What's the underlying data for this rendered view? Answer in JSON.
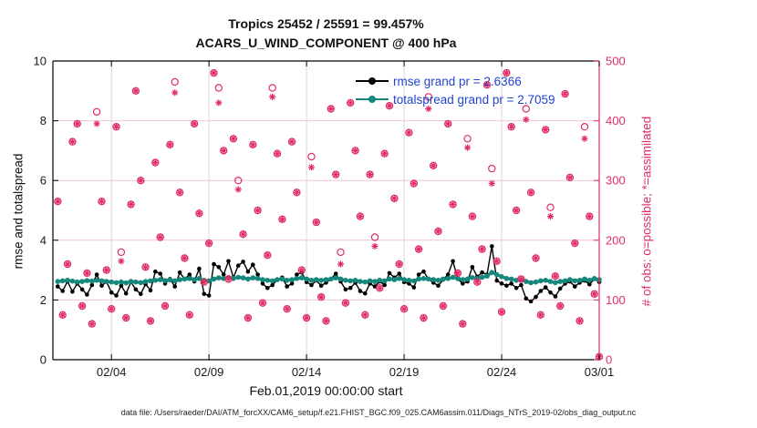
{
  "figure": {
    "title_line1": "Tropics 25452 / 25591 = 99.457%",
    "title_line2": "ACARS_U_WIND_COMPONENT @ 400 hPa",
    "caption": "data file: /Users/raeder/DAI/ATM_forcXX/CAM6_setup/f.e21.FHIST_BGC.f09_025.CAM6assim.011/Diags_NTrS_2019-02/obs_diag_output.nc"
  },
  "chart_data": {
    "type": "line",
    "title": "Tropics 25452 / 25591 = 99.457%",
    "subtitle": "ACARS_U_WIND_COMPONENT @ 400 hPa",
    "xlabel": "Feb.01,2019 00:00:00 start",
    "ylabel_left": "rmse and totalspread",
    "ylabel_right": "# of obs: o=possible; *=assimilated",
    "x_start_day": 0,
    "x_end_day": 28,
    "xticks": [
      {
        "day": 3,
        "label": "02/04"
      },
      {
        "day": 8,
        "label": "02/09"
      },
      {
        "day": 13,
        "label": "02/14"
      },
      {
        "day": 18,
        "label": "02/19"
      },
      {
        "day": 23,
        "label": "02/24"
      },
      {
        "day": 28,
        "label": "03/01"
      }
    ],
    "ylim_left": [
      0,
      10
    ],
    "yticks_left": [
      0,
      2,
      4,
      6,
      8,
      10
    ],
    "ylim_right": [
      0,
      500
    ],
    "yticks_right": [
      0,
      100,
      200,
      300,
      400,
      500
    ],
    "grid": true,
    "legend_position": "top-right-inside",
    "legend": [
      {
        "label": "rmse grand pr = 2.6366",
        "color": "#000000"
      },
      {
        "label": "totalspread grand pr = 2.7059",
        "color": "#15877d"
      }
    ],
    "style": {
      "pink": "#e02d64",
      "teal": "#15877d",
      "black": "#000000",
      "legend_text": "#2244cc",
      "grid_gray": "#d8d8d8",
      "grid_pink": "#f3c4d4",
      "tick_label": "#1a1a1a"
    },
    "t_first": 0.25,
    "t_step": 0.25,
    "n_points": 112,
    "series": [
      {
        "name": "rmse",
        "axis": "left",
        "kind": "line-dot",
        "color": "#000000",
        "grand_pr": 2.6366,
        "values": [
          2.45,
          2.3,
          2.62,
          2.28,
          2.55,
          2.35,
          2.18,
          2.5,
          2.85,
          2.48,
          2.61,
          2.25,
          2.15,
          2.48,
          2.22,
          2.6,
          2.35,
          2.2,
          2.53,
          2.32,
          2.95,
          2.88,
          2.55,
          2.7,
          2.45,
          2.92,
          2.7,
          2.85,
          2.62,
          3.05,
          2.2,
          2.15,
          3.2,
          3.1,
          2.85,
          3.3,
          2.75,
          3.15,
          3.28,
          2.95,
          3.18,
          2.85,
          2.55,
          2.4,
          2.5,
          2.68,
          2.75,
          2.45,
          2.55,
          2.85,
          2.92,
          2.6,
          2.5,
          2.65,
          2.48,
          2.58,
          2.7,
          2.88,
          2.62,
          2.35,
          2.4,
          2.58,
          2.3,
          2.22,
          2.55,
          2.45,
          2.62,
          2.5,
          2.9,
          2.75,
          2.88,
          2.6,
          2.55,
          2.42,
          2.85,
          2.95,
          2.7,
          2.58,
          2.48,
          2.68,
          2.85,
          3.3,
          2.7,
          2.55,
          2.62,
          3.1,
          2.78,
          2.92,
          2.85,
          3.8,
          2.65,
          2.55,
          2.48,
          2.55,
          2.4,
          2.5,
          2.05,
          1.95,
          2.1,
          2.3,
          2.42,
          2.25,
          2.12,
          2.38,
          2.55,
          2.62,
          2.45,
          2.58,
          2.65,
          2.52,
          2.7,
          2.6
        ]
      },
      {
        "name": "totalspread",
        "axis": "left",
        "kind": "line-dot",
        "color": "#15877d",
        "grand_pr": 2.7059,
        "values": [
          2.62,
          2.64,
          2.66,
          2.63,
          2.6,
          2.62,
          2.65,
          2.63,
          2.66,
          2.64,
          2.62,
          2.6,
          2.58,
          2.6,
          2.57,
          2.62,
          2.6,
          2.58,
          2.62,
          2.64,
          2.66,
          2.68,
          2.65,
          2.67,
          2.64,
          2.68,
          2.7,
          2.72,
          2.68,
          2.72,
          2.66,
          2.64,
          2.7,
          2.74,
          2.72,
          2.75,
          2.72,
          2.76,
          2.74,
          2.7,
          2.74,
          2.72,
          2.68,
          2.66,
          2.64,
          2.68,
          2.7,
          2.66,
          2.68,
          2.72,
          2.74,
          2.7,
          2.66,
          2.68,
          2.66,
          2.68,
          2.7,
          2.74,
          2.7,
          2.66,
          2.64,
          2.66,
          2.62,
          2.6,
          2.64,
          2.62,
          2.66,
          2.64,
          2.7,
          2.68,
          2.72,
          2.68,
          2.66,
          2.64,
          2.7,
          2.72,
          2.7,
          2.68,
          2.66,
          2.7,
          2.72,
          2.76,
          2.72,
          2.68,
          2.7,
          2.75,
          2.72,
          2.76,
          2.8,
          2.92,
          2.85,
          2.78,
          2.72,
          2.7,
          2.66,
          2.68,
          2.62,
          2.58,
          2.6,
          2.64,
          2.66,
          2.62,
          2.58,
          2.62,
          2.64,
          2.68,
          2.64,
          2.66,
          2.7,
          2.66,
          2.72,
          2.68
        ]
      },
      {
        "name": "possible",
        "axis": "right",
        "kind": "scatter-circle",
        "color": "#e02d64",
        "values": [
          265,
          75,
          160,
          365,
          395,
          90,
          145,
          60,
          415,
          265,
          150,
          85,
          390,
          180,
          70,
          260,
          450,
          300,
          155,
          65,
          330,
          205,
          90,
          360,
          465,
          280,
          170,
          75,
          395,
          245,
          130,
          195,
          480,
          455,
          350,
          135,
          370,
          300,
          210,
          70,
          360,
          250,
          95,
          175,
          455,
          345,
          235,
          85,
          365,
          280,
          150,
          70,
          340,
          230,
          105,
          65,
          420,
          310,
          180,
          95,
          430,
          350,
          240,
          75,
          310,
          205,
          120,
          345,
          425,
          270,
          160,
          85,
          380,
          295,
          185,
          70,
          440,
          325,
          215,
          90,
          395,
          260,
          145,
          60,
          370,
          240,
          130,
          185,
          460,
          320,
          165,
          80,
          480,
          390,
          250,
          135,
          420,
          280,
          170,
          75,
          385,
          255,
          140,
          90,
          445,
          305,
          195,
          65,
          390,
          240,
          110,
          5
        ]
      },
      {
        "name": "assimilated",
        "axis": "right",
        "kind": "scatter-asterisk",
        "color": "#e02d64",
        "derived_from": "possible",
        "delta_by_index": {
          "8": 20,
          "13": 15,
          "24": 18,
          "33": 25,
          "37": 15,
          "44": 15,
          "52": 18,
          "58": 20,
          "65": 15,
          "76": 20,
          "84": 15,
          "89": 25,
          "96": 18,
          "101": 15,
          "108": 20
        }
      }
    ]
  }
}
